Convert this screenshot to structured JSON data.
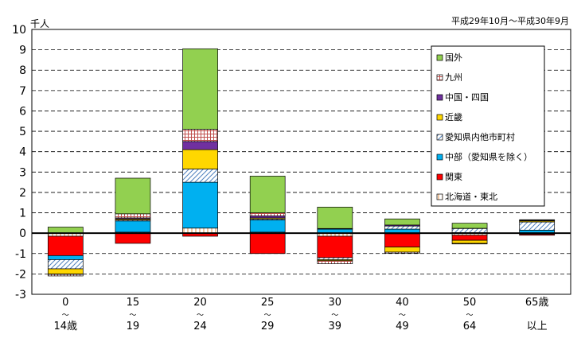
{
  "chart_data": {
    "type": "bar",
    "stacked": true,
    "unit_label": "千人",
    "period_label": "平成29年10月～平成30年9月",
    "ylim": [
      -3,
      10
    ],
    "yticks": [
      -3,
      -2,
      -1,
      0,
      1,
      2,
      3,
      4,
      5,
      6,
      7,
      8,
      9,
      10
    ],
    "categories": [
      {
        "top": "0",
        "mid": "～",
        "bottom": "14歳"
      },
      {
        "top": "15",
        "mid": "～",
        "bottom": "19"
      },
      {
        "top": "20",
        "mid": "～",
        "bottom": "24"
      },
      {
        "top": "25",
        "mid": "～",
        "bottom": "29"
      },
      {
        "top": "30",
        "mid": "～",
        "bottom": "39"
      },
      {
        "top": "40",
        "mid": "～",
        "bottom": "49"
      },
      {
        "top": "50",
        "mid": "～",
        "bottom": "64"
      },
      {
        "top": "65歳",
        "mid": "",
        "bottom": "以上"
      }
    ],
    "series": [
      {
        "name": "北海道・東北",
        "fill": "hatch_orange",
        "values": [
          -0.15,
          0.05,
          0.25,
          0.05,
          -0.15,
          -0.03,
          -0.1,
          -0.05
        ]
      },
      {
        "name": "関東",
        "fill": "#ff0000",
        "values": [
          -0.95,
          -0.5,
          -0.15,
          -1.0,
          -1.05,
          -0.65,
          -0.25,
          -0.05
        ]
      },
      {
        "name": "中部（愛知県を除く）",
        "fill": "#00b0f0",
        "values": [
          -0.2,
          0.55,
          2.25,
          0.6,
          0.2,
          0.2,
          0.03,
          0.15
        ]
      },
      {
        "name": "愛知県内他市町村",
        "fill": "hatch_blue",
        "values": [
          -0.45,
          0.05,
          0.65,
          0.05,
          -0.1,
          0.15,
          0.2,
          0.4
        ]
      },
      {
        "name": "近畿",
        "fill": "#ffd700",
        "values": [
          -0.25,
          0.05,
          0.95,
          0.05,
          -0.05,
          -0.25,
          -0.15,
          0.05
        ]
      },
      {
        "name": "中国・四国",
        "fill": "#7030a0",
        "values": [
          -0.02,
          0.05,
          0.4,
          0.1,
          0.03,
          0.05,
          0.01,
          0.01
        ]
      },
      {
        "name": "九州",
        "fill": "grid_red",
        "values": [
          -0.08,
          0.2,
          0.6,
          0.15,
          -0.15,
          -0.05,
          -0.03,
          0.03
        ]
      },
      {
        "name": "国外",
        "fill": "#92d050",
        "values": [
          0.3,
          1.75,
          3.95,
          1.8,
          1.05,
          0.3,
          0.25,
          0.02
        ]
      }
    ]
  }
}
